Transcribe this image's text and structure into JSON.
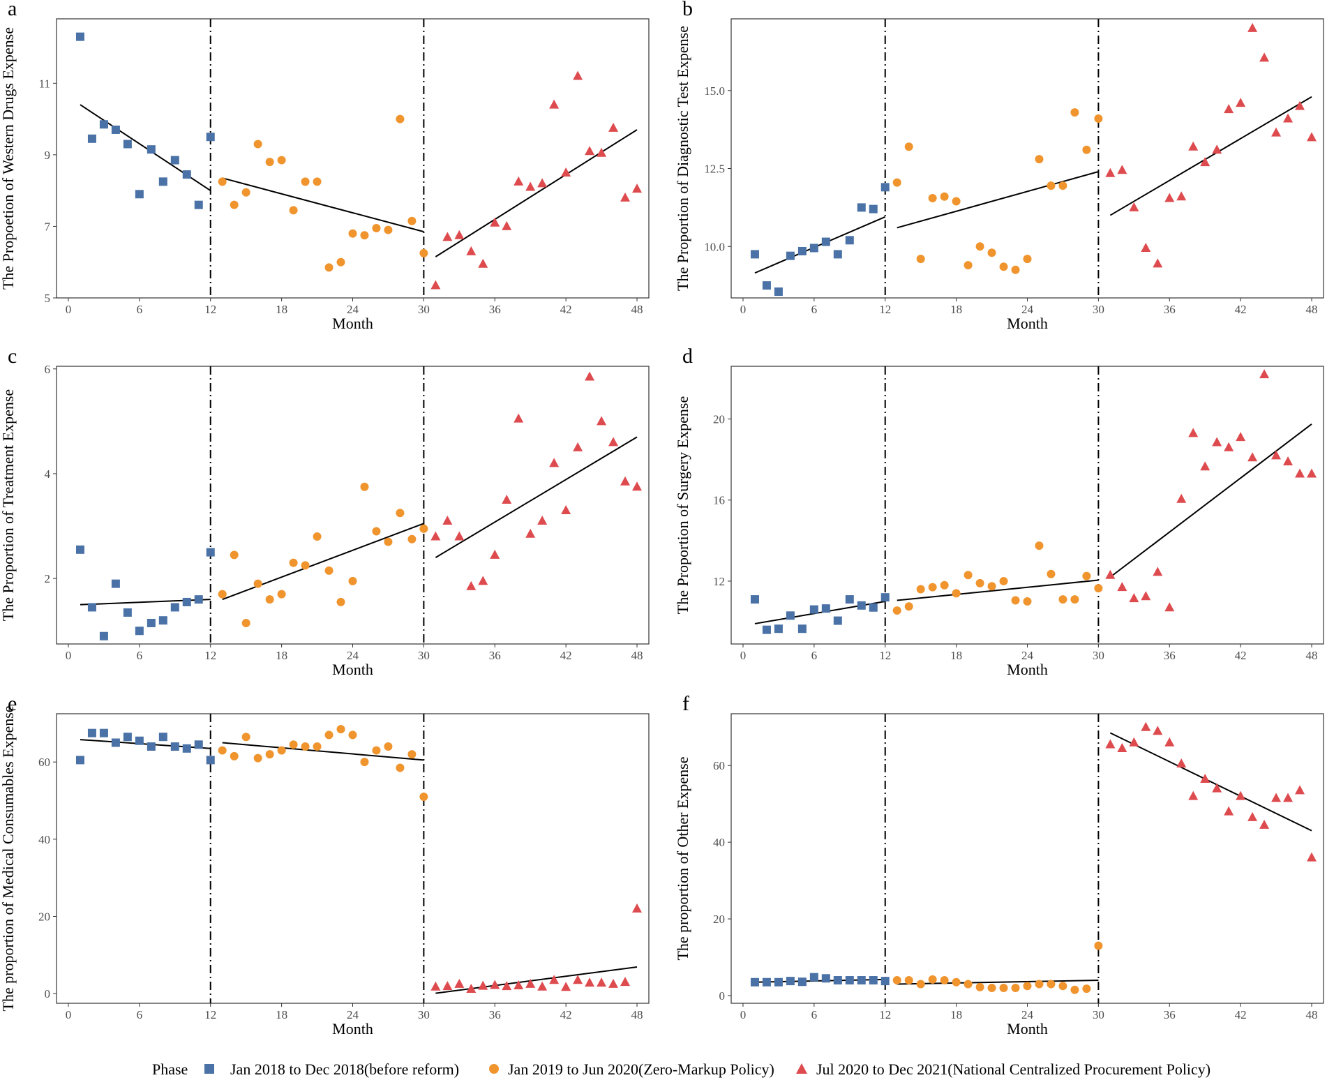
{
  "colors": {
    "phase1": "#4a72a6",
    "phase2": "#f0942e",
    "phase3": "#de4b4f"
  },
  "legend": {
    "title": "Phase",
    "items": [
      "Jan 2018 to Dec 2018(before reform)",
      "Jan 2019 to Jun 2020(Zero-Markup Policy)",
      "Jul 2020 to Dec 2021(National Centralized Procurement Policy)"
    ]
  },
  "chart_data": [
    {
      "type": "scatter",
      "panel": "a",
      "xlabel": "Month",
      "ylabel": "The Propoetion of Western Drugs Expense",
      "xlim": [
        -1,
        49
      ],
      "ylim": [
        5,
        12.8
      ],
      "xticks": [
        0,
        6,
        12,
        18,
        24,
        30,
        36,
        42,
        48
      ],
      "yticks": [
        5,
        7,
        9,
        11
      ],
      "vlines": [
        12,
        30
      ],
      "series": [
        {
          "name": "Jan 2018 to Dec 2018(before reform)",
          "x": [
            1,
            2,
            3,
            4,
            5,
            6,
            7,
            8,
            9,
            10,
            11,
            12
          ],
          "y": [
            12.3,
            9.45,
            9.85,
            9.7,
            9.3,
            7.9,
            9.15,
            8.25,
            8.85,
            8.45,
            7.6,
            9.5
          ]
        },
        {
          "name": "Jan 2019 to Jun 2020(Zero-Markup Policy)",
          "x": [
            13,
            14,
            15,
            16,
            17,
            18,
            19,
            20,
            21,
            22,
            23,
            24,
            25,
            26,
            27,
            28,
            29,
            30
          ],
          "y": [
            8.25,
            7.6,
            7.95,
            9.3,
            8.8,
            8.85,
            7.45,
            8.25,
            8.25,
            5.85,
            6.0,
            6.8,
            6.75,
            6.95,
            6.9,
            10.0,
            7.15,
            6.25
          ]
        },
        {
          "name": "Jul 2020 to Dec 2021(National Centralized Procurement Policy)",
          "x": [
            31,
            32,
            33,
            34,
            35,
            36,
            37,
            38,
            39,
            40,
            41,
            42,
            43,
            44,
            45,
            46,
            47,
            48
          ],
          "y": [
            5.35,
            6.7,
            6.75,
            6.3,
            5.95,
            7.1,
            7.0,
            8.25,
            8.1,
            8.2,
            10.4,
            8.5,
            11.2,
            9.1,
            9.05,
            9.75,
            7.8,
            8.05
          ]
        }
      ],
      "trends": [
        [
          1,
          10.4,
          12,
          8.0
        ],
        [
          13,
          8.35,
          30,
          6.85
        ],
        [
          31,
          6.15,
          48,
          9.7
        ]
      ]
    },
    {
      "type": "scatter",
      "panel": "b",
      "xlabel": "Month",
      "ylabel": "The Proportion of Diagnostic Test Expense",
      "xlim": [
        -1,
        49
      ],
      "ylim": [
        8.35,
        17.3
      ],
      "xticks": [
        0,
        6,
        12,
        18,
        24,
        30,
        36,
        42,
        48
      ],
      "yticks": [
        10.0,
        12.5,
        15.0
      ],
      "vlines": [
        12,
        30
      ],
      "series": [
        {
          "name": "Jan 2018 to Dec 2018(before reform)",
          "x": [
            1,
            2,
            3,
            4,
            5,
            6,
            7,
            8,
            9,
            10,
            11,
            12
          ],
          "y": [
            9.75,
            8.75,
            8.55,
            9.7,
            9.85,
            9.95,
            10.15,
            9.75,
            10.2,
            11.25,
            11.2,
            11.9
          ]
        },
        {
          "name": "Jan 2019 to Jun 2020(Zero-Markup Policy)",
          "x": [
            13,
            14,
            15,
            16,
            17,
            18,
            19,
            20,
            21,
            22,
            23,
            24,
            25,
            26,
            27,
            28,
            29,
            30
          ],
          "y": [
            12.05,
            13.2,
            9.6,
            11.55,
            11.6,
            11.45,
            9.4,
            10.0,
            9.8,
            9.35,
            9.25,
            9.6,
            12.8,
            11.95,
            11.95,
            14.3,
            13.1,
            14.1
          ]
        },
        {
          "name": "Jul 2020 to Dec 2021(National Centralized Procurement Policy)",
          "x": [
            31,
            32,
            33,
            34,
            35,
            36,
            37,
            38,
            39,
            40,
            41,
            42,
            43,
            44,
            45,
            46,
            47,
            48
          ],
          "y": [
            12.35,
            12.45,
            11.25,
            9.95,
            9.45,
            11.55,
            11.6,
            13.2,
            12.7,
            13.1,
            14.4,
            14.6,
            17.0,
            16.05,
            13.65,
            14.1,
            14.5,
            13.5
          ]
        }
      ],
      "trends": [
        [
          1,
          9.15,
          12,
          10.95
        ],
        [
          13,
          10.6,
          30,
          12.4
        ],
        [
          31,
          11.0,
          48,
          14.8
        ]
      ]
    },
    {
      "type": "scatter",
      "panel": "c",
      "xlabel": "Month",
      "ylabel": "The Proportion of Treatment Expense",
      "xlim": [
        -1,
        49
      ],
      "ylim": [
        0.75,
        6.05
      ],
      "xticks": [
        0,
        6,
        12,
        18,
        24,
        30,
        36,
        42,
        48
      ],
      "yticks": [
        2,
        4,
        6
      ],
      "vlines": [
        12,
        30
      ],
      "series": [
        {
          "name": "Jan 2018 to Dec 2018(before reform)",
          "x": [
            1,
            2,
            3,
            4,
            5,
            6,
            7,
            8,
            9,
            10,
            11,
            12
          ],
          "y": [
            2.55,
            1.45,
            0.9,
            1.9,
            1.35,
            1.0,
            1.15,
            1.2,
            1.45,
            1.55,
            1.6,
            2.5
          ]
        },
        {
          "name": "Jan 2019 to Jun 2020(Zero-Markup Policy)",
          "x": [
            13,
            14,
            15,
            16,
            17,
            18,
            19,
            20,
            21,
            22,
            23,
            24,
            25,
            26,
            27,
            28,
            29,
            30
          ],
          "y": [
            1.7,
            2.45,
            1.15,
            1.9,
            1.6,
            1.7,
            2.3,
            2.25,
            2.8,
            2.15,
            1.55,
            1.95,
            3.75,
            2.9,
            2.7,
            3.25,
            2.75,
            2.95
          ]
        },
        {
          "name": "Jul 2020 to Dec 2021(National Centralized Procurement Policy)",
          "x": [
            31,
            32,
            33,
            34,
            35,
            36,
            37,
            38,
            39,
            40,
            41,
            42,
            43,
            44,
            45,
            46,
            47,
            48
          ],
          "y": [
            2.8,
            3.1,
            2.8,
            1.85,
            1.95,
            2.45,
            3.5,
            5.05,
            2.85,
            3.1,
            4.2,
            3.3,
            4.5,
            5.85,
            5.0,
            4.6,
            3.85,
            3.75
          ]
        }
      ],
      "trends": [
        [
          1,
          1.5,
          12,
          1.6
        ],
        [
          13,
          1.6,
          30,
          3.05
        ],
        [
          31,
          2.4,
          48,
          4.7
        ]
      ]
    },
    {
      "type": "scatter",
      "panel": "d",
      "xlabel": "Month",
      "ylabel": "The Proportion of Surgery Expense",
      "xlim": [
        -1,
        49
      ],
      "ylim": [
        8.9,
        22.6
      ],
      "xticks": [
        0,
        6,
        12,
        18,
        24,
        30,
        36,
        42,
        48
      ],
      "yticks": [
        12,
        16,
        20
      ],
      "vlines": [
        12,
        30
      ],
      "series": [
        {
          "name": "Jan 2018 to Dec 2018(before reform)",
          "x": [
            1,
            2,
            3,
            4,
            5,
            6,
            7,
            8,
            9,
            10,
            11,
            12
          ],
          "y": [
            11.1,
            9.6,
            9.65,
            10.3,
            9.65,
            10.6,
            10.65,
            10.05,
            11.1,
            10.8,
            10.7,
            11.2
          ]
        },
        {
          "name": "Jan 2019 to Jun 2020(Zero-Markup Policy)",
          "x": [
            13,
            14,
            15,
            16,
            17,
            18,
            19,
            20,
            21,
            22,
            23,
            24,
            25,
            26,
            27,
            28,
            29,
            30
          ],
          "y": [
            10.55,
            10.75,
            11.6,
            11.7,
            11.8,
            11.4,
            12.3,
            11.9,
            11.75,
            12.0,
            11.05,
            11.0,
            13.75,
            12.35,
            11.1,
            11.1,
            12.25,
            11.65
          ]
        },
        {
          "name": "Jul 2020 to Dec 2021(National Centralized Procurement Policy)",
          "x": [
            31,
            32,
            33,
            34,
            35,
            36,
            37,
            38,
            39,
            40,
            41,
            42,
            43,
            44,
            45,
            46,
            47,
            48
          ],
          "y": [
            12.3,
            11.7,
            11.15,
            11.25,
            12.45,
            10.7,
            16.05,
            19.3,
            17.65,
            18.85,
            18.6,
            19.1,
            18.1,
            22.2,
            18.2,
            17.9,
            17.3,
            17.3
          ]
        }
      ],
      "trends": [
        [
          1,
          9.9,
          12,
          11.0
        ],
        [
          13,
          11.05,
          30,
          12.05
        ],
        [
          31,
          12.2,
          48,
          19.75
        ]
      ]
    },
    {
      "type": "scatter",
      "panel": "e",
      "xlabel": "Month",
      "ylabel": "The proportion of Medical Consumables Expense",
      "xlim": [
        -1,
        49
      ],
      "ylim": [
        -2.5,
        72.5
      ],
      "xticks": [
        0,
        6,
        12,
        18,
        24,
        30,
        36,
        42,
        48
      ],
      "yticks": [
        0,
        20,
        40,
        60
      ],
      "vlines": [
        12,
        30
      ],
      "series": [
        {
          "name": "Jan 2018 to Dec 2018(before reform)",
          "x": [
            1,
            2,
            3,
            4,
            5,
            6,
            7,
            8,
            9,
            10,
            11,
            12
          ],
          "y": [
            60.5,
            67.5,
            67.5,
            65.0,
            66.5,
            65.5,
            64.0,
            66.5,
            64.0,
            63.5,
            64.5,
            60.5
          ]
        },
        {
          "name": "Jan 2019 to Jun 2020(Zero-Markup Policy)",
          "x": [
            13,
            14,
            15,
            16,
            17,
            18,
            19,
            20,
            21,
            22,
            23,
            24,
            25,
            26,
            27,
            28,
            29,
            30
          ],
          "y": [
            63.0,
            61.5,
            66.5,
            61.0,
            62.0,
            63.0,
            64.5,
            64.0,
            64.0,
            67.0,
            68.5,
            67.0,
            60.0,
            63.0,
            64.0,
            58.5,
            62.0,
            51.0
          ]
        },
        {
          "name": "Jul 2020 to Dec 2021(National Centralized Procurement Policy)",
          "x": [
            31,
            32,
            33,
            34,
            35,
            36,
            37,
            38,
            39,
            40,
            41,
            42,
            43,
            44,
            45,
            46,
            47,
            48
          ],
          "y": [
            1.8,
            1.9,
            2.5,
            1.2,
            2.0,
            2.2,
            1.9,
            2.1,
            2.5,
            1.8,
            3.5,
            1.7,
            3.5,
            2.8,
            2.8,
            2.5,
            3.0,
            22.0
          ]
        }
      ],
      "trends": [
        [
          1,
          65.8,
          12,
          63.5
        ],
        [
          13,
          65.0,
          30,
          60.5
        ],
        [
          31,
          0.1,
          48,
          6.9
        ]
      ]
    },
    {
      "type": "scatter",
      "panel": "f",
      "xlabel": "Month",
      "ylabel": "The proportion of Other Expense",
      "xlim": [
        -1,
        49
      ],
      "ylim": [
        -2.0,
        73.5
      ],
      "xticks": [
        0,
        6,
        12,
        18,
        24,
        30,
        36,
        42,
        48
      ],
      "yticks": [
        0,
        20,
        40,
        60
      ],
      "vlines": [
        12,
        30
      ],
      "series": [
        {
          "name": "Jan 2018 to Dec 2018(before reform)",
          "x": [
            1,
            2,
            3,
            4,
            5,
            6,
            7,
            8,
            9,
            10,
            11,
            12
          ],
          "y": [
            3.5,
            3.5,
            3.5,
            3.8,
            3.6,
            4.8,
            4.5,
            4.0,
            4.0,
            4.0,
            4.0,
            3.8
          ]
        },
        {
          "name": "Jan 2019 to Jun 2020(Zero-Markup Policy)",
          "x": [
            13,
            14,
            15,
            16,
            17,
            18,
            19,
            20,
            21,
            22,
            23,
            24,
            25,
            26,
            27,
            28,
            29,
            30
          ],
          "y": [
            4.0,
            4.0,
            3.0,
            4.2,
            4.0,
            3.5,
            3.0,
            2.2,
            2.0,
            2.0,
            2.0,
            2.5,
            3.0,
            3.0,
            2.5,
            1.5,
            1.8,
            13.0
          ]
        },
        {
          "name": "Jul 2020 to Dec 2021(National Centralized Procurement Policy)",
          "x": [
            31,
            32,
            33,
            34,
            35,
            36,
            37,
            38,
            39,
            40,
            41,
            42,
            43,
            44,
            45,
            46,
            47,
            48
          ],
          "y": [
            65.5,
            64.5,
            66.0,
            70.0,
            69.0,
            66.0,
            60.5,
            52.0,
            56.5,
            54.0,
            48.0,
            52.0,
            46.5,
            44.5,
            51.5,
            51.5,
            53.5,
            36.0
          ]
        }
      ],
      "trends": [
        [
          1,
          3.5,
          12,
          4.2
        ],
        [
          13,
          3.0,
          30,
          4.0
        ],
        [
          31,
          68.5,
          48,
          43.0
        ]
      ]
    }
  ]
}
